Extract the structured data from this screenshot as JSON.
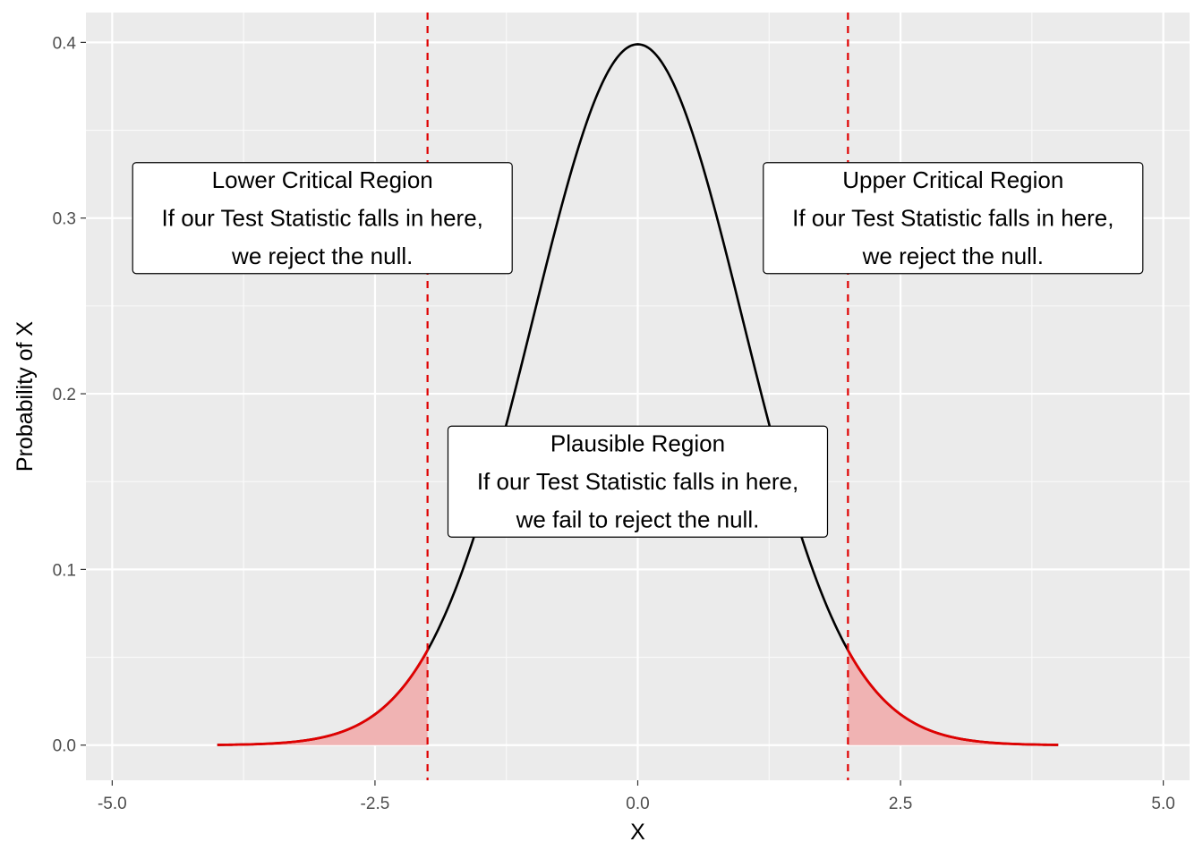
{
  "chart_data": {
    "type": "line",
    "title": "",
    "xlabel": "X",
    "ylabel": "Probability of X",
    "xlim": [
      -5.25,
      5.25
    ],
    "ylim": [
      -0.02,
      0.417
    ],
    "x_ticks": [
      -5.0,
      -2.5,
      0.0,
      2.5,
      5.0
    ],
    "x_tick_labels": [
      "-5.0",
      "-2.5",
      "0.0",
      "2.5",
      "5.0"
    ],
    "y_ticks": [
      0.0,
      0.1,
      0.2,
      0.3,
      0.4
    ],
    "y_tick_labels": [
      "0.0",
      "0.1",
      "0.2",
      "0.3",
      "0.4"
    ],
    "grid": true,
    "background": "#ebebeb",
    "series": [
      {
        "style": "solid",
        "color": "#000000",
        "x": [
          -4.0,
          -3.5,
          -3.0,
          -2.5,
          -2.0,
          -1.5,
          -1.0,
          -0.5,
          0.0,
          0.5,
          1.0,
          1.5,
          2.0,
          2.5,
          3.0,
          3.5,
          4.0
        ],
        "y": [
          0.0001,
          0.0009,
          0.0044,
          0.0175,
          0.054,
          0.1295,
          0.242,
          0.3521,
          0.3989,
          0.3521,
          0.242,
          0.1295,
          0.054,
          0.0175,
          0.0044,
          0.0009,
          0.0001
        ]
      }
    ],
    "shaded_regions": [
      {
        "x_from": -4.0,
        "x_to": -2.0,
        "fill": "#f0b3b3",
        "line_color": "#e00000"
      },
      {
        "x_from": 2.0,
        "x_to": 4.0,
        "fill": "#f0b3b3",
        "line_color": "#e00000"
      }
    ],
    "critical_lines": [
      {
        "x": -2.0,
        "color": "#e00000",
        "style": "dashed"
      },
      {
        "x": 2.0,
        "color": "#e00000",
        "style": "dashed"
      }
    ],
    "annotations": [
      {
        "x": -3.0,
        "y": 0.3,
        "lines": [
          "Lower Critical Region",
          "If our Test Statistic falls in here,",
          "we reject the null."
        ]
      },
      {
        "x": 3.0,
        "y": 0.3,
        "lines": [
          "Upper Critical Region",
          "If our Test Statistic falls in here,",
          "we reject the null."
        ]
      },
      {
        "x": 0.0,
        "y": 0.15,
        "lines": [
          "Plausible Region",
          "If our Test Statistic falls in here,",
          "we fail to reject the null."
        ]
      }
    ]
  }
}
